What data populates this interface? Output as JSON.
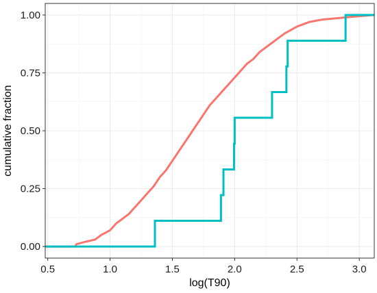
{
  "chart_data": {
    "type": "line",
    "title": "",
    "xlabel": "log(T90)",
    "ylabel": "cumulative fraction",
    "xlim": [
      0.48,
      3.12
    ],
    "ylim": [
      -0.05,
      1.05
    ],
    "x_ticks": [
      0.5,
      1.0,
      1.5,
      2.0,
      2.5,
      3.0
    ],
    "x_tick_labels": [
      "0.5",
      "1.0",
      "1.5",
      "2.0",
      "2.5",
      "3.0"
    ],
    "y_ticks": [
      0.0,
      0.25,
      0.5,
      0.75,
      1.0
    ],
    "y_tick_labels": [
      "0.00",
      "0.25",
      "0.50",
      "0.75",
      "1.00"
    ],
    "grid": true,
    "legend": "none",
    "series": [
      {
        "color": "#F8766D",
        "style": "ecdf",
        "points": [
          [
            0.48,
            0.0
          ],
          [
            0.72,
            0.0
          ],
          [
            0.73,
            0.01
          ],
          [
            0.8,
            0.02
          ],
          [
            0.88,
            0.03
          ],
          [
            0.93,
            0.05
          ],
          [
            1.0,
            0.07
          ],
          [
            1.05,
            0.1
          ],
          [
            1.1,
            0.12
          ],
          [
            1.15,
            0.14
          ],
          [
            1.2,
            0.17
          ],
          [
            1.25,
            0.2
          ],
          [
            1.3,
            0.23
          ],
          [
            1.35,
            0.26
          ],
          [
            1.4,
            0.3
          ],
          [
            1.45,
            0.33
          ],
          [
            1.5,
            0.37
          ],
          [
            1.55,
            0.41
          ],
          [
            1.6,
            0.45
          ],
          [
            1.65,
            0.49
          ],
          [
            1.7,
            0.53
          ],
          [
            1.75,
            0.57
          ],
          [
            1.8,
            0.61
          ],
          [
            1.85,
            0.64
          ],
          [
            1.9,
            0.67
          ],
          [
            1.95,
            0.7
          ],
          [
            2.0,
            0.73
          ],
          [
            2.05,
            0.76
          ],
          [
            2.1,
            0.79
          ],
          [
            2.15,
            0.81
          ],
          [
            2.2,
            0.84
          ],
          [
            2.25,
            0.86
          ],
          [
            2.3,
            0.88
          ],
          [
            2.35,
            0.9
          ],
          [
            2.4,
            0.92
          ],
          [
            2.45,
            0.935
          ],
          [
            2.5,
            0.95
          ],
          [
            2.55,
            0.96
          ],
          [
            2.6,
            0.97
          ],
          [
            2.65,
            0.975
          ],
          [
            2.7,
            0.98
          ],
          [
            2.8,
            0.985
          ],
          [
            2.9,
            0.99
          ],
          [
            3.0,
            0.995
          ],
          [
            3.12,
            1.0
          ]
        ]
      },
      {
        "color": "#00BFC4",
        "style": "step",
        "points": [
          [
            0.48,
            0.0
          ],
          [
            1.36,
            0.0
          ],
          [
            1.36,
            0.111
          ],
          [
            1.89,
            0.111
          ],
          [
            1.89,
            0.222
          ],
          [
            1.91,
            0.222
          ],
          [
            1.91,
            0.333
          ],
          [
            1.995,
            0.333
          ],
          [
            1.995,
            0.444
          ],
          [
            2.0,
            0.444
          ],
          [
            2.0,
            0.556
          ],
          [
            2.3,
            0.556
          ],
          [
            2.3,
            0.667
          ],
          [
            2.415,
            0.667
          ],
          [
            2.415,
            0.778
          ],
          [
            2.425,
            0.778
          ],
          [
            2.425,
            0.889
          ],
          [
            2.89,
            0.889
          ],
          [
            2.89,
            1.0
          ],
          [
            3.12,
            1.0
          ]
        ]
      }
    ]
  }
}
